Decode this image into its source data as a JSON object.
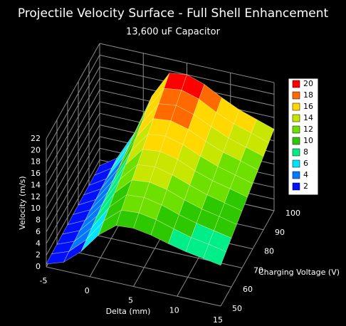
{
  "chart_data": {
    "type": "surface",
    "title": "Projectile Velocity Surface - Full Shell Enhancement",
    "subtitle": "13,600 uF Capacitor",
    "xlabel": "Delta (mm)",
    "ylabel": "Charging Voltage (V)",
    "zlabel": "Velocity (m/s)",
    "xlim": [
      -5,
      15
    ],
    "ylim": [
      50,
      100
    ],
    "zlim": [
      0,
      22
    ],
    "xticks": [
      -5,
      0,
      5,
      10,
      15
    ],
    "yticks": [
      50,
      60,
      70,
      80,
      90,
      100
    ],
    "zticks": [
      0,
      2,
      4,
      6,
      8,
      10,
      12,
      14,
      16,
      18,
      20,
      22
    ],
    "x": [
      -5,
      -3,
      -1,
      1,
      3,
      5,
      7,
      9,
      11,
      13,
      15
    ],
    "y": [
      50,
      55,
      60,
      65,
      70,
      75,
      80,
      85,
      90,
      95,
      100
    ],
    "z": [
      [
        0.5,
        1.5,
        4,
        7.5,
        9.8,
        10,
        9.5,
        8.7,
        8,
        7.5,
        7
      ],
      [
        0.6,
        1.7,
        4.4,
        8.3,
        10.8,
        11,
        10.5,
        9.6,
        8.8,
        8.3,
        7.7
      ],
      [
        0.6,
        1.8,
        4.8,
        9,
        11.8,
        12,
        11.4,
        10.4,
        9.6,
        9,
        8.4
      ],
      [
        0.7,
        2,
        5.2,
        9.8,
        12.7,
        13,
        12.4,
        11.3,
        10.4,
        9.8,
        9.1
      ],
      [
        0.7,
        2.1,
        5.6,
        10.5,
        13.7,
        14,
        13.3,
        12.2,
        11.2,
        10.5,
        9.8
      ],
      [
        0.8,
        2.3,
        6,
        11.3,
        14.7,
        15,
        14.3,
        13,
        12,
        11.3,
        10.5
      ],
      [
        0.8,
        2.4,
        6.4,
        12,
        15.7,
        16,
        15.2,
        13.9,
        12.8,
        12,
        11.2
      ],
      [
        0.9,
        2.6,
        6.8,
        12.8,
        16.7,
        17,
        16.2,
        14.8,
        13.6,
        12.8,
        11.9
      ],
      [
        0.9,
        2.7,
        7.2,
        13.5,
        17.6,
        18,
        17.1,
        15.7,
        14.4,
        13.5,
        12.6
      ],
      [
        1,
        2.9,
        7.6,
        14.3,
        18.6,
        19,
        18.1,
        16.5,
        15.2,
        14.3,
        13.3
      ],
      [
        1,
        3,
        8,
        15,
        19.6,
        20,
        19,
        17.4,
        16,
        15,
        14
      ]
    ],
    "colorscale": [
      {
        "value": 20,
        "color": "#ff0000"
      },
      {
        "value": 18,
        "color": "#ff6a00"
      },
      {
        "value": 16,
        "color": "#ffd800"
      },
      {
        "value": 14,
        "color": "#c8e600"
      },
      {
        "value": 12,
        "color": "#6ee000"
      },
      {
        "value": 10,
        "color": "#2ec800"
      },
      {
        "value": 8,
        "color": "#00ee88"
      },
      {
        "value": 6,
        "color": "#00e5ff"
      },
      {
        "value": 4,
        "color": "#0078ff"
      },
      {
        "value": 2,
        "color": "#0010ff"
      }
    ]
  }
}
